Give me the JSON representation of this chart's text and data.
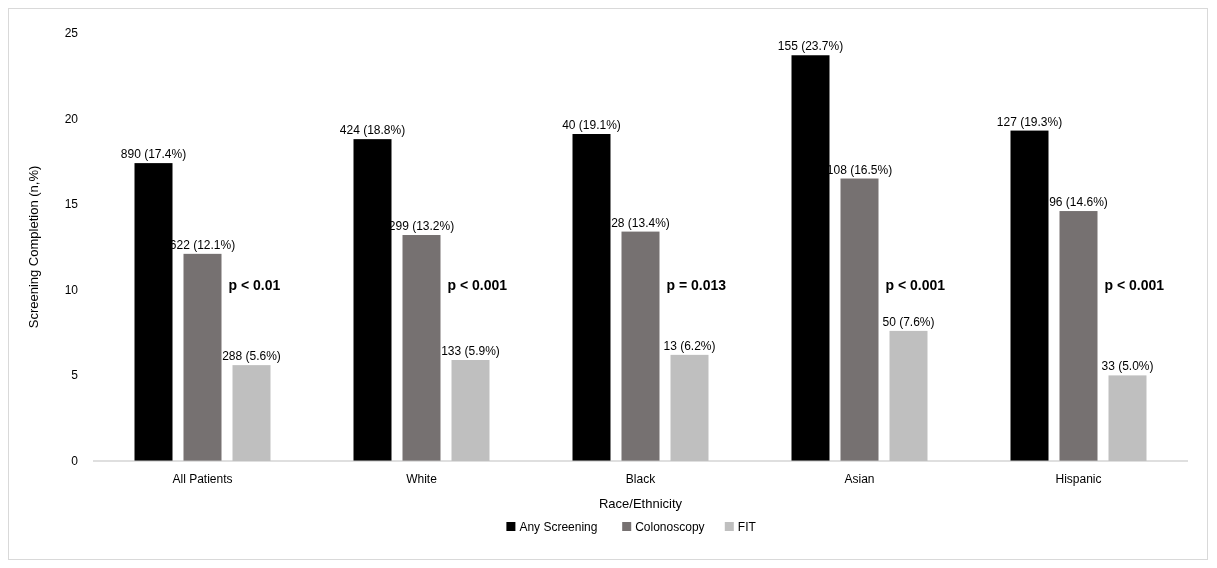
{
  "chart_data": {
    "type": "bar",
    "xlabel": "Race/Ethnicity",
    "ylabel": "Screening Completion (n,%)",
    "categories": [
      "All Patients",
      "White",
      "Black",
      "Asian",
      "Hispanic"
    ],
    "series": [
      {
        "name": "Any Screening",
        "color": "#000000",
        "values": [
          17.4,
          18.8,
          19.1,
          23.7,
          19.3
        ],
        "value_labels": [
          "890 (17.4%)",
          "424 (18.8%)",
          "40 (19.1%)",
          "155 (23.7%)",
          "127 (19.3%)"
        ]
      },
      {
        "name": "Colonoscopy",
        "color": "#767171",
        "values": [
          12.1,
          13.2,
          13.4,
          16.5,
          14.6
        ],
        "value_labels": [
          "622 (12.1%)",
          "299 (13.2%)",
          "28 (13.4%)",
          "108 (16.5%)",
          "96 (14.6%)"
        ]
      },
      {
        "name": "FIT",
        "color": "#bfbfbf",
        "values": [
          5.6,
          5.9,
          6.2,
          7.6,
          5.0
        ],
        "value_labels": [
          "288 (5.6%)",
          "133 (5.9%)",
          "13 (6.2%)",
          "50 (7.6%)",
          "33 (5.0%)"
        ]
      }
    ],
    "annotations": [
      "p < 0.01",
      "p < 0.001",
      "p = 0.013",
      "p < 0.001",
      "p < 0.001"
    ],
    "ylim": [
      0,
      25
    ],
    "yticks": [
      0,
      5,
      10,
      15,
      20,
      25
    ],
    "legend": "bottom"
  }
}
